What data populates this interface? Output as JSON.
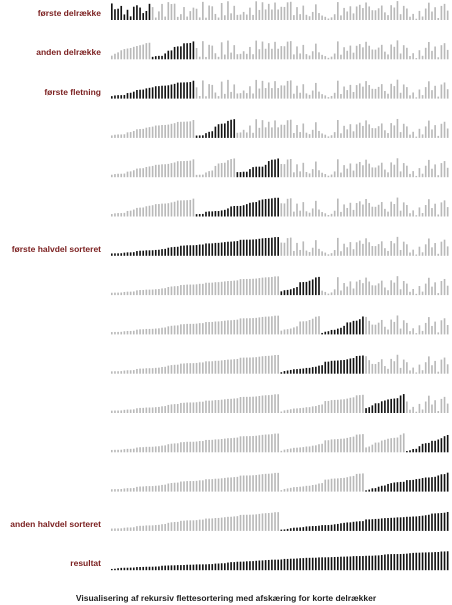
{
  "caption": "Visualisering af rekursiv flettesortering med afskæring for korte delrækker",
  "colors": {
    "label": "#7a1e1e",
    "active": "#111111",
    "inactive": "#b9b9b9"
  },
  "n": 108,
  "rows": [
    {
      "label": "første delrække",
      "sorted": [],
      "active": [
        0,
        13
      ]
    },
    {
      "label": "anden delrække",
      "sorted": [
        [
          0,
          13
        ],
        [
          13,
          27
        ]
      ],
      "active": [
        13,
        27
      ]
    },
    {
      "label": "første fletning",
      "sorted": [
        [
          0,
          27
        ]
      ],
      "active": [
        0,
        27
      ]
    },
    {
      "label": "",
      "sorted": [
        [
          0,
          27
        ],
        [
          27,
          40
        ]
      ],
      "active": [
        27,
        40
      ]
    },
    {
      "label": "",
      "sorted": [
        [
          0,
          27
        ],
        [
          27,
          40
        ],
        [
          40,
          54
        ]
      ],
      "active": [
        40,
        54
      ]
    },
    {
      "label": "",
      "sorted": [
        [
          0,
          27
        ],
        [
          27,
          54
        ]
      ],
      "active": [
        27,
        54
      ]
    },
    {
      "label": "første halvdel sorteret",
      "sorted": [
        [
          0,
          54
        ]
      ],
      "active": [
        0,
        54
      ]
    },
    {
      "label": "",
      "sorted": [
        [
          0,
          54
        ],
        [
          54,
          67
        ]
      ],
      "active": [
        54,
        67
      ]
    },
    {
      "label": "",
      "sorted": [
        [
          0,
          54
        ],
        [
          54,
          67
        ],
        [
          67,
          81
        ]
      ],
      "active": [
        67,
        81
      ]
    },
    {
      "label": "",
      "sorted": [
        [
          0,
          54
        ],
        [
          54,
          81
        ]
      ],
      "active": [
        54,
        81
      ]
    },
    {
      "label": "",
      "sorted": [
        [
          0,
          54
        ],
        [
          54,
          81
        ],
        [
          81,
          94
        ]
      ],
      "active": [
        81,
        94
      ]
    },
    {
      "label": "",
      "sorted": [
        [
          0,
          54
        ],
        [
          54,
          81
        ],
        [
          81,
          94
        ],
        [
          94,
          108
        ]
      ],
      "active": [
        94,
        108
      ]
    },
    {
      "label": "",
      "sorted": [
        [
          0,
          54
        ],
        [
          54,
          81
        ],
        [
          81,
          108
        ]
      ],
      "active": [
        81,
        108
      ]
    },
    {
      "label": "anden halvdel sorteret",
      "sorted": [
        [
          0,
          54
        ],
        [
          54,
          108
        ]
      ],
      "active": [
        54,
        108
      ]
    },
    {
      "label": "resultat",
      "sorted": [
        [
          0,
          108
        ]
      ],
      "active": [
        0,
        108
      ]
    }
  ]
}
